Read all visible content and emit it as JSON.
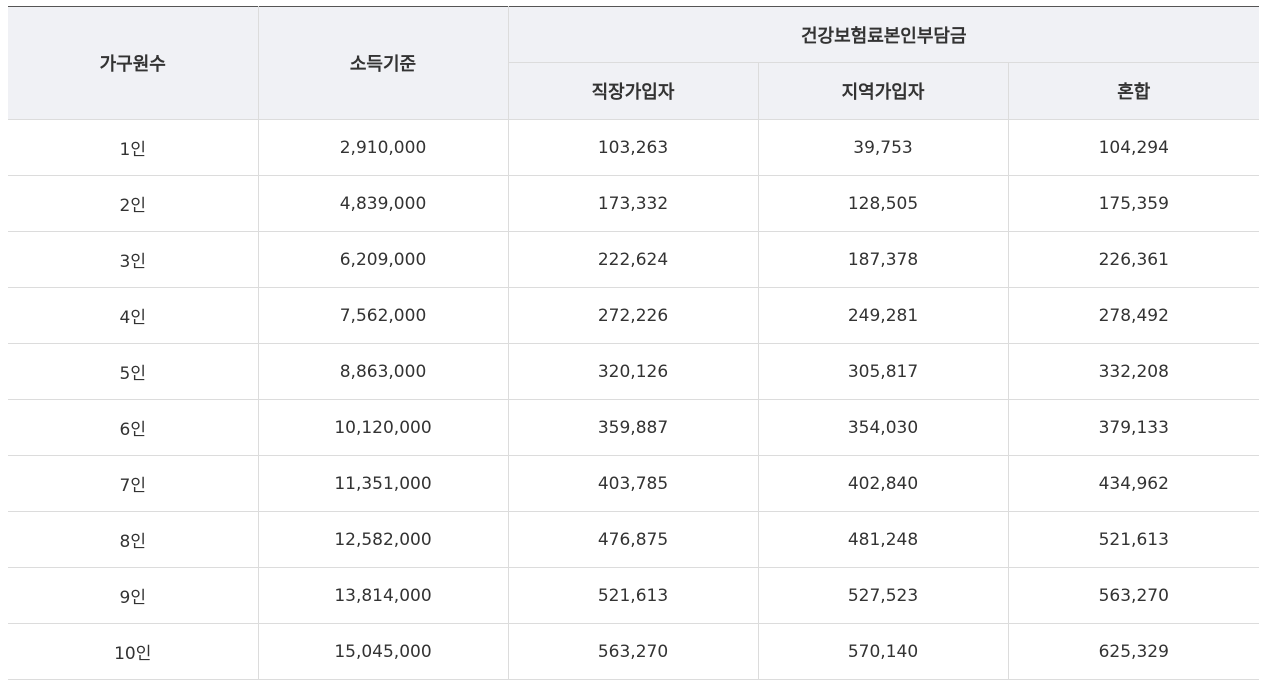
{
  "table": {
    "headers": {
      "household": "가구원수",
      "income": "소득기준",
      "premium_group": "건강보험료본인부담금",
      "employee": "직장가입자",
      "regional": "지역가입자",
      "mixed": "혼합"
    },
    "rows": [
      [
        "1인",
        "2,910,000",
        "103,263",
        "39,753",
        "104,294"
      ],
      [
        "2인",
        "4,839,000",
        "173,332",
        "128,505",
        "175,359"
      ],
      [
        "3인",
        "6,209,000",
        "222,624",
        "187,378",
        "226,361"
      ],
      [
        "4인",
        "7,562,000",
        "272,226",
        "249,281",
        "278,492"
      ],
      [
        "5인",
        "8,863,000",
        "320,126",
        "305,817",
        "332,208"
      ],
      [
        "6인",
        "10,120,000",
        "359,887",
        "354,030",
        "379,133"
      ],
      [
        "7인",
        "11,351,000",
        "403,785",
        "402,840",
        "434,962"
      ],
      [
        "8인",
        "12,582,000",
        "476,875",
        "481,248",
        "521,613"
      ],
      [
        "9인",
        "13,814,000",
        "521,613",
        "527,523",
        "563,270"
      ],
      [
        "10인",
        "15,045,000",
        "563,270",
        "570,140",
        "625,329"
      ]
    ]
  }
}
